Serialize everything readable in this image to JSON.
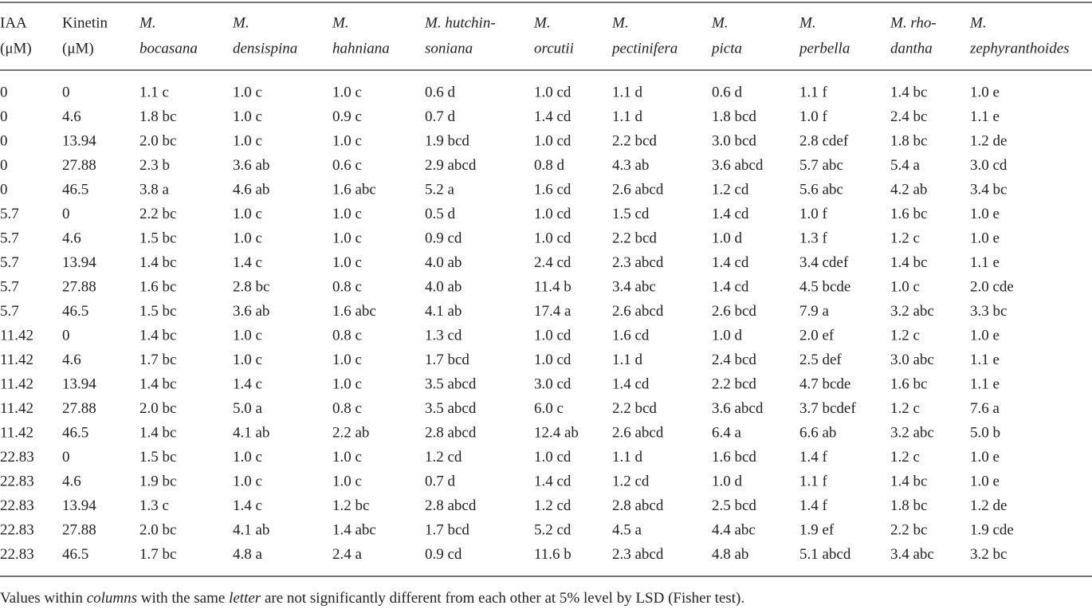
{
  "table": {
    "header": [
      {
        "lines": [
          "IAA",
          "(μM)"
        ],
        "italic": false
      },
      {
        "lines": [
          "Kinetin",
          "(μM)"
        ],
        "italic": false
      },
      {
        "lines": [
          "M.",
          "bocasana"
        ],
        "italic": true
      },
      {
        "lines": [
          "M.",
          "densispina"
        ],
        "italic": true
      },
      {
        "lines": [
          "M.",
          "hahniana"
        ],
        "italic": true
      },
      {
        "lines": [
          "M. hutchin-",
          "soniana"
        ],
        "italic": true
      },
      {
        "lines": [
          "M.",
          "orcutii"
        ],
        "italic": true
      },
      {
        "lines": [
          "M.",
          "pectinifera"
        ],
        "italic": true
      },
      {
        "lines": [
          "M.",
          "picta"
        ],
        "italic": true
      },
      {
        "lines": [
          "M.",
          "perbella"
        ],
        "italic": true
      },
      {
        "lines": [
          "M. rho-",
          "dantha"
        ],
        "italic": true
      },
      {
        "lines": [
          "M.",
          "zephyranthoides"
        ],
        "italic": true
      }
    ],
    "rows": [
      [
        "0",
        "0",
        "1.1 c",
        "1.0 c",
        "1.0 c",
        "0.6 d",
        "1.0 cd",
        "1.1 d",
        "0.6 d",
        "1.1 f",
        "1.4 bc",
        "1.0 e"
      ],
      [
        "0",
        "4.6",
        "1.8 bc",
        "1.0 c",
        "0.9 c",
        "0.7 d",
        "1.4 cd",
        "1.1 d",
        "1.8 bcd",
        "1.0 f",
        "2.4 bc",
        "1.1 e"
      ],
      [
        "0",
        "13.94",
        "2.0 bc",
        "1.0 c",
        "1.0 c",
        "1.9 bcd",
        "1.0 cd",
        "2.2 bcd",
        "3.0 bcd",
        "2.8 cdef",
        "1.8 bc",
        "1.2 de"
      ],
      [
        "0",
        "27.88",
        "2.3 b",
        "3.6 ab",
        "0.6 c",
        "2.9 abcd",
        "0.8 d",
        "4.3 ab",
        "3.6 abcd",
        "5.7 abc",
        "5.4 a",
        "3.0 cd"
      ],
      [
        "0",
        "46.5",
        "3.8 a",
        "4.6 ab",
        "1.6 abc",
        "5.2 a",
        "1.6 cd",
        "2.6 abcd",
        "1.2 cd",
        "5.6 abc",
        "4.2 ab",
        "3.4 bc"
      ],
      [
        "5.7",
        "0",
        "2.2 bc",
        "1.0 c",
        "1.0 c",
        "0.5 d",
        "1.0 cd",
        "1.5 cd",
        "1.4 cd",
        "1.0 f",
        "1.6 bc",
        "1.0 e"
      ],
      [
        "5.7",
        "4.6",
        "1.5 bc",
        "1.0 c",
        "1.0 c",
        "0.9 cd",
        "1.0 cd",
        "2.2 bcd",
        "1.0 d",
        "1.3 f",
        "1.2 c",
        "1.0 e"
      ],
      [
        "5.7",
        "13.94",
        "1.4 bc",
        "1.4 c",
        "1.0 c",
        "4.0 ab",
        "2.4 cd",
        "2.3 abcd",
        "1.4 cd",
        "3.4 cdef",
        "1.4 bc",
        "1.1 e"
      ],
      [
        "5.7",
        "27.88",
        "1.6 bc",
        "2.8 bc",
        "0.8 c",
        "4.0 ab",
        "11.4 b",
        "3.4 abc",
        "1.4 cd",
        "4.5 bcde",
        "1.0 c",
        "2.0 cde"
      ],
      [
        "5.7",
        "46.5",
        "1.5 bc",
        "3.6 ab",
        "1.6 abc",
        "4.1 ab",
        "17.4 a",
        "2.6 abcd",
        "2.6 bcd",
        "7.9 a",
        "3.2 abc",
        "3.3 bc"
      ],
      [
        "11.42",
        "0",
        "1.4 bc",
        "1.0 c",
        "0.8 c",
        "1.3 cd",
        "1.0 cd",
        "1.6 cd",
        "1.0 d",
        "2.0 ef",
        "1.2 c",
        "1.0 e"
      ],
      [
        "11.42",
        "4.6",
        "1.7 bc",
        "1.0 c",
        "1.0 c",
        "1.7 bcd",
        "1.0 cd",
        "1.1 d",
        "2.4 bcd",
        "2.5 def",
        "3.0 abc",
        "1.1 e"
      ],
      [
        "11.42",
        "13.94",
        "1.4 bc",
        "1.4 c",
        "1.0 c",
        "3.5 abcd",
        "3.0 cd",
        "1.4 cd",
        "2.2 bcd",
        "4.7 bcde",
        "1.6 bc",
        "1.1 e"
      ],
      [
        "11.42",
        "27.88",
        "2.0 bc",
        "5.0 a",
        "0.8 c",
        "3.5 abcd",
        "6.0 c",
        "2.2 bcd",
        "3.6 abcd",
        "3.7 bcdef",
        "1.2 c",
        "7.6 a"
      ],
      [
        "11.42",
        "46.5",
        "1.4 bc",
        "4.1 ab",
        "2.2 ab",
        "2.8 abcd",
        "12.4 ab",
        "2.6 abcd",
        "6.4 a",
        "6.6 ab",
        "3.2 abc",
        "5.0 b"
      ],
      [
        "22.83",
        "0",
        "1.5 bc",
        "1.0 c",
        "1.0 c",
        "1.2 cd",
        "1.0 cd",
        "1.1 d",
        "1.6 bcd",
        "1.4 f",
        "1.2 c",
        "1.0 e"
      ],
      [
        "22.83",
        "4.6",
        "1.9 bc",
        "1.0 c",
        "1.0 c",
        "0.7 d",
        "1.4 cd",
        "1.2 cd",
        "1.0 d",
        "1.1 f",
        "1.4 bc",
        "1.0 e"
      ],
      [
        "22.83",
        "13.94",
        "1.3 c",
        "1.4 c",
        "1.2 bc",
        "2.8 abcd",
        "1.2 cd",
        "2.8 abcd",
        "2.5 bcd",
        "1.4 f",
        "1.8 bc",
        "1.2 de"
      ],
      [
        "22.83",
        "27.88",
        "2.0 bc",
        "4.1 ab",
        "1.4 abc",
        "1.7 bcd",
        "5.2 cd",
        "4.5 a",
        "4.4 abc",
        "1.9 ef",
        "2.2 bc",
        "1.9 cde"
      ],
      [
        "22.83",
        "46.5",
        "1.7 bc",
        "4.8 a",
        "2.4 a",
        "0.9 cd",
        "11.6 b",
        "2.3 abcd",
        "4.8 ab",
        "5.1 abcd",
        "3.4 abc",
        "3.2 bc"
      ]
    ]
  },
  "footer": {
    "parts": [
      "Values within ",
      "columns",
      " with the same ",
      "letter",
      " are not significantly different from each other at 5% level by LSD (Fisher test)."
    ]
  }
}
